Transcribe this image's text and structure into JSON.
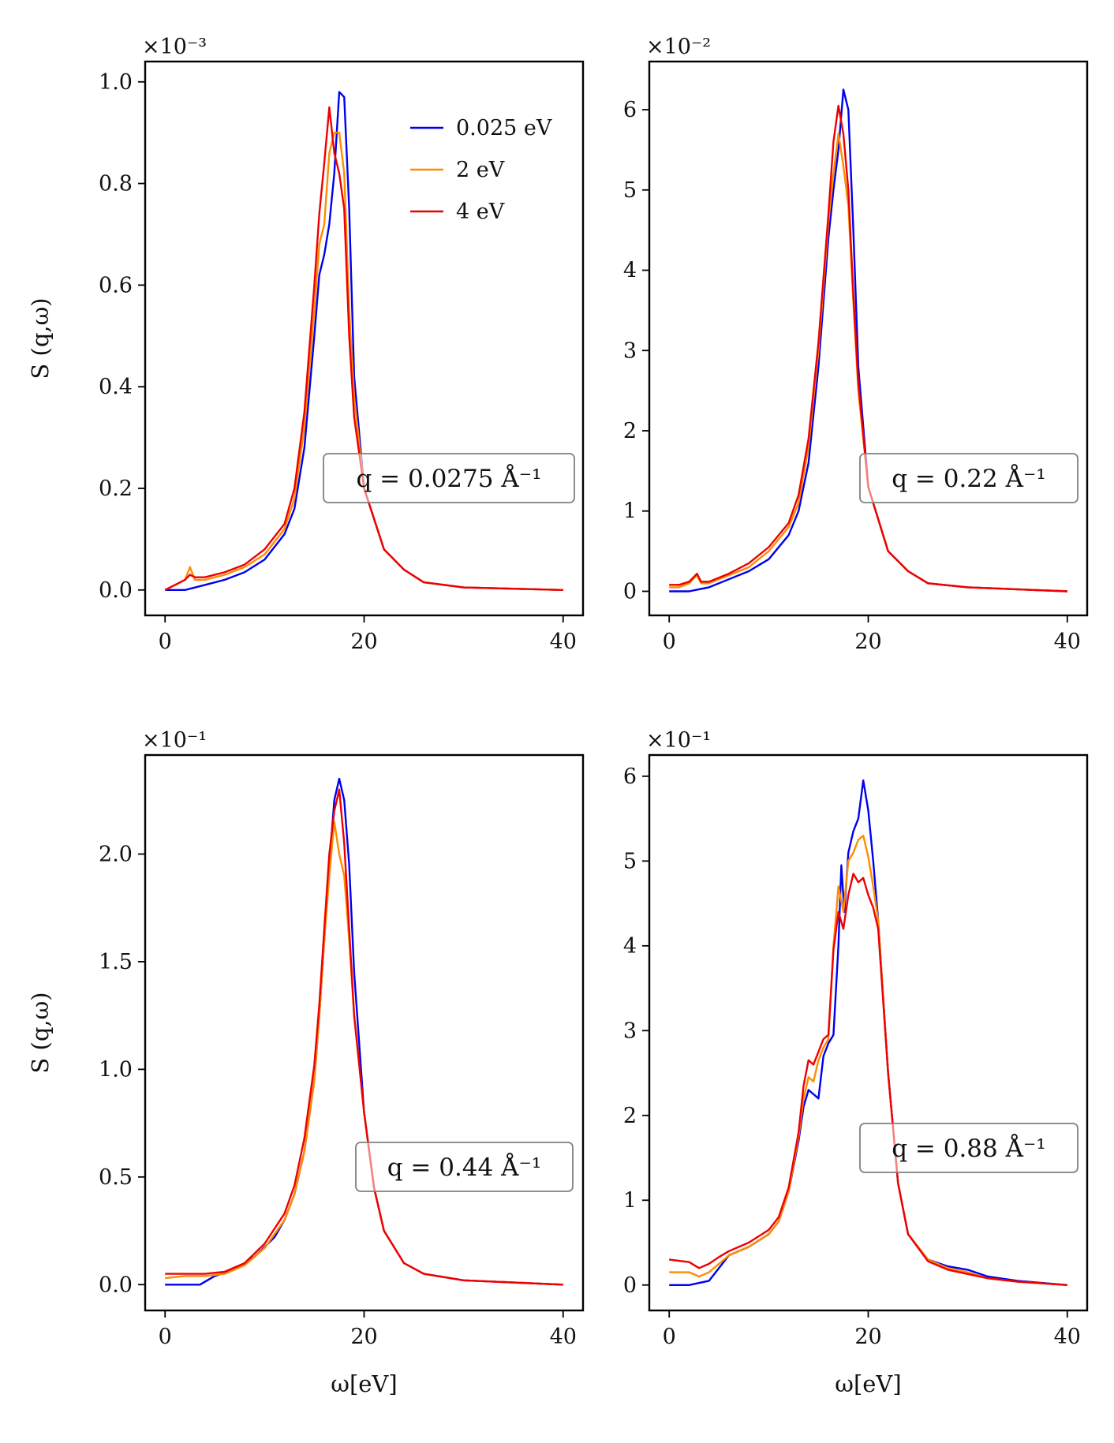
{
  "chart_data": [
    {
      "type": "line",
      "title": "",
      "xlabel": "",
      "ylabel": "S (q,ω)",
      "multiplier": "×10⁻³",
      "annotation": "q = 0.0275 Å⁻¹",
      "xlim": [
        -2,
        42
      ],
      "ylim": [
        -0.05,
        1.04
      ],
      "xticks": [
        0,
        20,
        40
      ],
      "xtick_labels": [
        "0",
        "20",
        "40"
      ],
      "yticks": [
        0.0,
        0.2,
        0.4,
        0.6,
        0.8,
        1.0
      ],
      "ytick_labels": [
        "0.0",
        "0.2",
        "0.4",
        "0.6",
        "0.8",
        "1.0"
      ],
      "legend": true,
      "series": [
        {
          "name": "0.025 eV",
          "color": "#0000ee",
          "x": [
            0,
            2,
            4,
            6,
            8,
            10,
            12,
            13,
            14,
            15,
            15.5,
            16,
            16.5,
            17,
            17.5,
            18,
            18.5,
            19,
            20,
            22,
            24,
            26,
            30,
            40
          ],
          "y": [
            0,
            0,
            0.01,
            0.02,
            0.035,
            0.06,
            0.11,
            0.16,
            0.28,
            0.5,
            0.62,
            0.66,
            0.72,
            0.82,
            0.98,
            0.97,
            0.75,
            0.42,
            0.2,
            0.08,
            0.04,
            0.015,
            0.005,
            0
          ]
        },
        {
          "name": "2 eV",
          "color": "#ff8c00",
          "x": [
            0,
            1,
            2,
            2.5,
            3,
            4,
            6,
            8,
            10,
            12,
            13,
            14,
            15,
            15.5,
            16,
            16.5,
            17,
            17.5,
            18,
            18.5,
            19,
            20,
            22,
            24,
            26,
            30,
            40
          ],
          "y": [
            0,
            0.01,
            0.02,
            0.045,
            0.02,
            0.02,
            0.03,
            0.045,
            0.07,
            0.12,
            0.18,
            0.32,
            0.55,
            0.68,
            0.72,
            0.86,
            0.9,
            0.9,
            0.82,
            0.55,
            0.38,
            0.2,
            0.08,
            0.04,
            0.015,
            0.005,
            0
          ]
        },
        {
          "name": "4 eV",
          "color": "#ee0000",
          "x": [
            0,
            1,
            2,
            2.5,
            3,
            4,
            6,
            8,
            10,
            12,
            13,
            14,
            15,
            15.5,
            16,
            16.5,
            17,
            17.5,
            18,
            18.5,
            19,
            20,
            22,
            24,
            26,
            30,
            40
          ],
          "y": [
            0,
            0.01,
            0.02,
            0.03,
            0.025,
            0.025,
            0.035,
            0.05,
            0.08,
            0.13,
            0.2,
            0.35,
            0.6,
            0.74,
            0.84,
            0.95,
            0.86,
            0.82,
            0.75,
            0.5,
            0.34,
            0.2,
            0.08,
            0.04,
            0.015,
            0.005,
            0
          ]
        }
      ]
    },
    {
      "type": "line",
      "title": "",
      "xlabel": "",
      "ylabel": "",
      "multiplier": "×10⁻²",
      "annotation": "q = 0.22 Å⁻¹",
      "xlim": [
        -2,
        42
      ],
      "ylim": [
        -0.3,
        6.6
      ],
      "xticks": [
        0,
        20,
        40
      ],
      "xtick_labels": [
        "0",
        "20",
        "40"
      ],
      "yticks": [
        0,
        1,
        2,
        3,
        4,
        5,
        6
      ],
      "ytick_labels": [
        "0",
        "1",
        "2",
        "3",
        "4",
        "5",
        "6"
      ],
      "legend": false,
      "series": [
        {
          "name": "0.025 eV",
          "color": "#0000ee",
          "x": [
            0,
            2,
            4,
            6,
            8,
            10,
            12,
            13,
            14,
            15,
            15.5,
            16,
            16.5,
            17,
            17.5,
            18,
            18.5,
            19,
            20,
            22,
            24,
            26,
            30,
            40
          ],
          "y": [
            0,
            0,
            0.05,
            0.15,
            0.25,
            0.4,
            0.7,
            1.0,
            1.6,
            2.8,
            3.6,
            4.4,
            5.0,
            5.5,
            6.25,
            6.0,
            4.5,
            2.8,
            1.3,
            0.5,
            0.25,
            0.1,
            0.05,
            0
          ]
        },
        {
          "name": "2 eV",
          "color": "#ff8c00",
          "x": [
            0,
            1,
            2,
            2.8,
            3.2,
            4,
            6,
            8,
            10,
            12,
            13,
            14,
            15,
            15.5,
            16,
            16.5,
            17,
            17.5,
            18,
            18.5,
            19,
            20,
            22,
            24,
            26,
            30,
            40
          ],
          "y": [
            0.05,
            0.05,
            0.1,
            0.2,
            0.1,
            0.1,
            0.2,
            0.3,
            0.5,
            0.8,
            1.1,
            1.8,
            3.0,
            3.8,
            4.6,
            5.2,
            5.7,
            5.3,
            4.8,
            3.6,
            2.5,
            1.3,
            0.5,
            0.25,
            0.1,
            0.05,
            0
          ]
        },
        {
          "name": "4 eV",
          "color": "#ee0000",
          "x": [
            0,
            1,
            2,
            2.8,
            3.2,
            4,
            6,
            8,
            10,
            12,
            13,
            14,
            15,
            15.5,
            16,
            16.5,
            17,
            17.5,
            18,
            18.5,
            19,
            20,
            22,
            24,
            26,
            30,
            40
          ],
          "y": [
            0.08,
            0.08,
            0.12,
            0.22,
            0.12,
            0.12,
            0.22,
            0.35,
            0.55,
            0.85,
            1.2,
            1.9,
            3.1,
            3.9,
            4.7,
            5.6,
            6.05,
            5.7,
            5.0,
            3.7,
            2.6,
            1.3,
            0.5,
            0.25,
            0.1,
            0.05,
            0
          ]
        }
      ]
    },
    {
      "type": "line",
      "title": "",
      "xlabel": "ω[eV]",
      "ylabel": "S (q,ω)",
      "multiplier": "×10⁻¹",
      "annotation": "q = 0.44 Å⁻¹",
      "xlim": [
        -2,
        42
      ],
      "ylim": [
        -0.12,
        2.46
      ],
      "xticks": [
        0,
        20,
        40
      ],
      "xtick_labels": [
        "0",
        "20",
        "40"
      ],
      "yticks": [
        0.0,
        0.5,
        1.0,
        1.5,
        2.0
      ],
      "ytick_labels": [
        "0.0",
        "0.5",
        "1.0",
        "1.5",
        "2.0"
      ],
      "legend": false,
      "series": [
        {
          "name": "0.025 eV",
          "color": "#0000ee",
          "x": [
            0,
            2,
            3.5,
            5,
            7,
            9,
            11,
            12,
            13,
            14,
            15,
            15.5,
            16,
            16.5,
            17,
            17.5,
            18,
            18.5,
            19,
            20,
            21,
            22,
            24,
            26,
            30,
            40
          ],
          "y": [
            0,
            0,
            0,
            0.04,
            0.07,
            0.13,
            0.22,
            0.3,
            0.42,
            0.62,
            0.95,
            1.25,
            1.6,
            1.95,
            2.25,
            2.35,
            2.25,
            1.95,
            1.45,
            0.8,
            0.45,
            0.25,
            0.1,
            0.05,
            0.02,
            0
          ]
        },
        {
          "name": "2 eV",
          "color": "#ff8c00",
          "x": [
            0,
            2,
            4,
            6,
            8,
            10,
            12,
            13,
            14,
            15,
            15.5,
            16,
            16.5,
            17,
            17.5,
            18,
            18.5,
            19,
            20,
            21,
            22,
            24,
            26,
            30,
            40
          ],
          "y": [
            0.03,
            0.04,
            0.04,
            0.05,
            0.09,
            0.17,
            0.3,
            0.42,
            0.62,
            0.95,
            1.25,
            1.6,
            1.9,
            2.15,
            2.0,
            1.9,
            1.6,
            1.25,
            0.8,
            0.45,
            0.25,
            0.1,
            0.05,
            0.02,
            0
          ]
        },
        {
          "name": "4 eV",
          "color": "#ee0000",
          "x": [
            0,
            2,
            4,
            6,
            8,
            10,
            12,
            13,
            14,
            15,
            15.5,
            16,
            16.5,
            17,
            17.5,
            18,
            18.5,
            19,
            20,
            21,
            22,
            24,
            26,
            30,
            40
          ],
          "y": [
            0.05,
            0.05,
            0.05,
            0.06,
            0.1,
            0.19,
            0.33,
            0.46,
            0.68,
            1.02,
            1.3,
            1.65,
            2.0,
            2.2,
            2.3,
            2.05,
            1.65,
            1.25,
            0.8,
            0.45,
            0.25,
            0.1,
            0.05,
            0.02,
            0
          ]
        }
      ]
    },
    {
      "type": "line",
      "title": "",
      "xlabel": "ω[eV]",
      "ylabel": "",
      "multiplier": "×10⁻¹",
      "annotation": "q = 0.88 Å⁻¹",
      "xlim": [
        -2,
        42
      ],
      "ylim": [
        -0.3,
        6.25
      ],
      "xticks": [
        0,
        20,
        40
      ],
      "xtick_labels": [
        "0",
        "20",
        "40"
      ],
      "yticks": [
        0,
        1,
        2,
        3,
        4,
        5,
        6
      ],
      "ytick_labels": [
        "0",
        "1",
        "2",
        "3",
        "4",
        "5",
        "6"
      ],
      "legend": false,
      "series": [
        {
          "name": "0.025 eV",
          "color": "#0000ee",
          "x": [
            0,
            2,
            4,
            5,
            6,
            8,
            10,
            11,
            12,
            13,
            13.5,
            14,
            14.5,
            15,
            15.5,
            16,
            16.5,
            17,
            17.3,
            17.6,
            18,
            18.5,
            19,
            19.5,
            20,
            20.5,
            21,
            22,
            23,
            24,
            26,
            28,
            30,
            32,
            35,
            40
          ],
          "y": [
            0,
            0,
            0.05,
            0.2,
            0.35,
            0.45,
            0.6,
            0.75,
            1.1,
            1.7,
            2.1,
            2.3,
            2.25,
            2.2,
            2.7,
            2.85,
            2.95,
            4.0,
            4.95,
            4.4,
            5.1,
            5.35,
            5.5,
            5.95,
            5.6,
            5.0,
            4.3,
            2.5,
            1.2,
            0.6,
            0.3,
            0.22,
            0.18,
            0.1,
            0.05,
            0
          ]
        },
        {
          "name": "2 eV",
          "color": "#ff8c00",
          "x": [
            0,
            2,
            3,
            4,
            5,
            6,
            8,
            10,
            11,
            12,
            13,
            13.5,
            14,
            14.5,
            15,
            15.5,
            16,
            16.5,
            17,
            17.5,
            18,
            18.5,
            19,
            19.5,
            20,
            20.5,
            21,
            22,
            23,
            24,
            26,
            28,
            30,
            32,
            35,
            40
          ],
          "y": [
            0.15,
            0.15,
            0.1,
            0.15,
            0.25,
            0.35,
            0.45,
            0.6,
            0.75,
            1.1,
            1.75,
            2.2,
            2.45,
            2.4,
            2.65,
            2.8,
            2.9,
            4.0,
            4.7,
            4.4,
            5.0,
            5.1,
            5.25,
            5.3,
            5.05,
            4.7,
            4.3,
            2.5,
            1.2,
            0.6,
            0.3,
            0.2,
            0.15,
            0.08,
            0.04,
            0
          ]
        },
        {
          "name": "4 eV",
          "color": "#ee0000",
          "x": [
            0,
            2,
            3,
            4,
            5,
            6,
            8,
            10,
            11,
            12,
            13,
            13.5,
            14,
            14.5,
            15,
            15.5,
            16,
            16.5,
            17,
            17.5,
            18,
            18.5,
            19,
            19.5,
            20,
            20.5,
            21,
            22,
            23,
            24,
            26,
            28,
            30,
            32,
            35,
            40
          ],
          "y": [
            0.3,
            0.27,
            0.2,
            0.25,
            0.33,
            0.4,
            0.5,
            0.65,
            0.8,
            1.15,
            1.8,
            2.35,
            2.65,
            2.6,
            2.75,
            2.9,
            2.95,
            3.95,
            4.4,
            4.2,
            4.6,
            4.85,
            4.75,
            4.8,
            4.6,
            4.45,
            4.2,
            2.5,
            1.2,
            0.6,
            0.28,
            0.18,
            0.13,
            0.08,
            0.04,
            0
          ]
        }
      ]
    }
  ]
}
